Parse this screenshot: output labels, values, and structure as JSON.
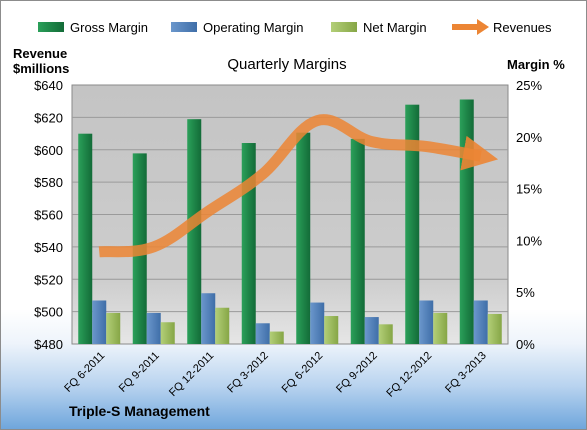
{
  "chart_data": {
    "type": "bar",
    "title": "Quarterly Margins",
    "company": "Triple-S Management",
    "categories": [
      "FQ 6-2011",
      "FQ 9-2011",
      "FQ 12-2011",
      "FQ 3-2012",
      "FQ 6-2012",
      "FQ 9-2012",
      "FQ 12-2012",
      "FQ 3-2013"
    ],
    "y_left": {
      "label_line1": "Revenue",
      "label_line2": "$millions",
      "range": [
        480,
        640
      ],
      "ticks": [
        480,
        500,
        520,
        540,
        560,
        580,
        600,
        620,
        640
      ],
      "tick_labels": [
        "$480",
        "$500",
        "$520",
        "$540",
        "$560",
        "$580",
        "$600",
        "$620",
        "$640"
      ]
    },
    "y_right": {
      "label": "Margin %",
      "range": [
        0,
        25
      ],
      "ticks": [
        0,
        5,
        10,
        15,
        20,
        25
      ],
      "tick_labels": [
        "0%",
        "5%",
        "10%",
        "15%",
        "20%",
        "25%"
      ]
    },
    "series": [
      {
        "name": "Gross Margin",
        "axis": "right",
        "values": [
          20.3,
          18.4,
          21.7,
          19.4,
          20.4,
          19.8,
          23.1,
          23.6
        ],
        "color": "#1f8a4a"
      },
      {
        "name": "Operating Margin",
        "axis": "right",
        "values": [
          4.2,
          3.0,
          4.9,
          2.0,
          4.0,
          2.6,
          4.2,
          4.2
        ],
        "color": "#4f81bd"
      },
      {
        "name": "Net Margin",
        "axis": "right",
        "values": [
          3.0,
          2.1,
          3.5,
          1.2,
          2.7,
          1.9,
          3.0,
          2.9
        ],
        "color": "#9bbb59"
      },
      {
        "name": "Revenues",
        "axis": "left",
        "type": "line",
        "values": [
          537,
          540,
          562,
          585,
          618,
          605,
          602,
          596
        ],
        "color": "#f0883a"
      }
    ],
    "grid": true,
    "legend": "top"
  }
}
